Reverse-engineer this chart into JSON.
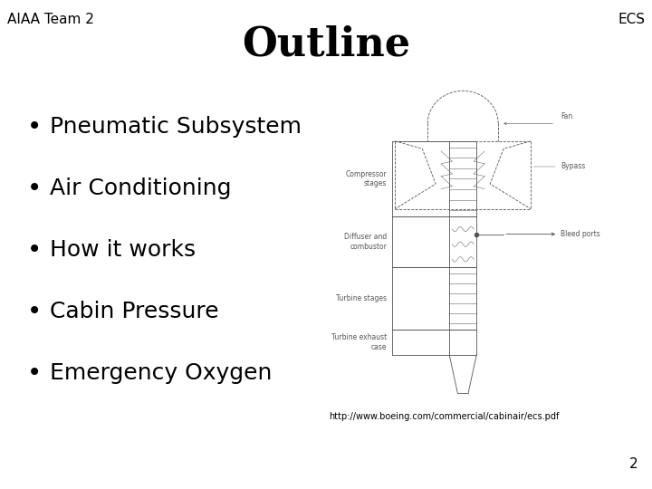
{
  "title": "Outline",
  "header_left": "AIAA Team 2",
  "header_right": "ECS",
  "bullet_items": [
    "Pneumatic Subsystem",
    "Air Conditioning",
    "How it works",
    "Cabin Pressure",
    "Emergency Oxygen"
  ],
  "url_text": "http://www.boeing.com/commercial/cabinair/ecs.pdf",
  "page_number": "2",
  "background_color": "#ffffff",
  "text_color": "#000000",
  "title_fontsize": 32,
  "header_fontsize": 11,
  "bullet_fontsize": 18,
  "url_fontsize": 7,
  "page_fontsize": 11,
  "engine_color": "#555555",
  "engine_lw": 0.6
}
